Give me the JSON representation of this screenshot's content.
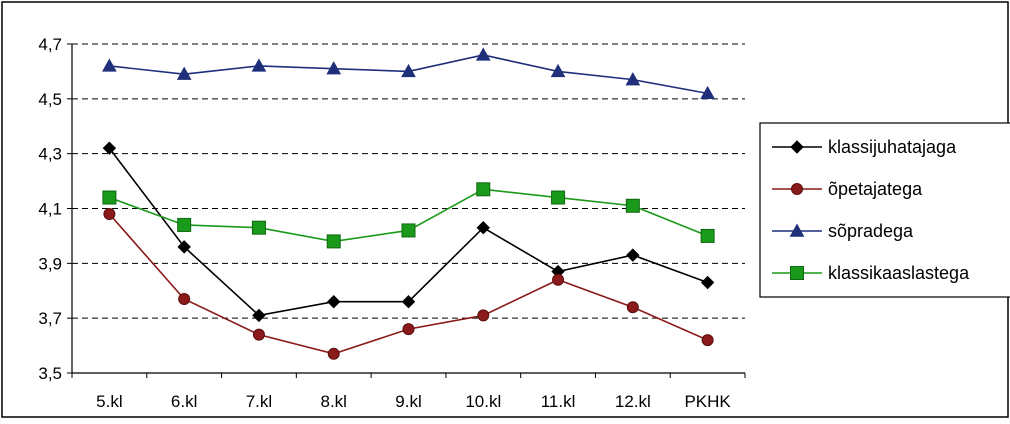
{
  "chart_data": {
    "type": "line",
    "title": "",
    "xlabel": "",
    "ylabel": "",
    "categories": [
      "5.kl",
      "6.kl",
      "7.kl",
      "8.kl",
      "9.kl",
      "10.kl",
      "11.kl",
      "12.kl",
      "PKHK"
    ],
    "ylim": [
      3.5,
      4.7
    ],
    "yticks": [
      3.5,
      3.7,
      3.9,
      4.1,
      4.3,
      4.5,
      4.7
    ],
    "ytick_labels": [
      "3,5",
      "3,7",
      "3,9",
      "4,1",
      "4,3",
      "4,5",
      "4,7"
    ],
    "grid": "horizontal dashed",
    "legend_position": "right",
    "series": [
      {
        "name": "klassijuhatajaga",
        "color": "#000000",
        "marker": "diamond",
        "values": [
          4.32,
          3.96,
          3.71,
          3.76,
          3.76,
          4.03,
          3.87,
          3.93,
          3.83
        ]
      },
      {
        "name": "õpetajatega",
        "color": "#8b1a1a",
        "marker": "circle",
        "values": [
          4.08,
          3.77,
          3.64,
          3.57,
          3.66,
          3.71,
          3.84,
          3.74,
          3.62
        ]
      },
      {
        "name": "sõpradega",
        "color": "#1f2f7a",
        "marker": "triangle",
        "values": [
          4.62,
          4.59,
          4.62,
          4.61,
          4.6,
          4.66,
          4.6,
          4.57,
          4.52
        ]
      },
      {
        "name": "klassikaaslastega",
        "color": "#1a9a1a",
        "marker": "square",
        "values": [
          4.14,
          4.04,
          4.03,
          3.98,
          4.02,
          4.17,
          4.14,
          4.11,
          4.0
        ]
      }
    ]
  }
}
